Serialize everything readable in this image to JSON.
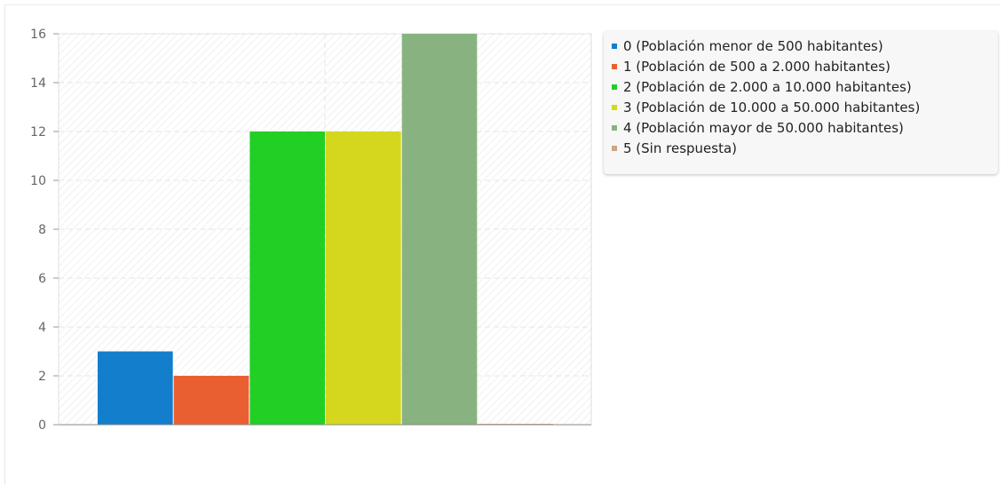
{
  "chart_data": {
    "type": "bar",
    "title": "",
    "xlabel": "",
    "ylabel": "",
    "ylim": [
      0,
      16
    ],
    "yticks": [
      0,
      2,
      4,
      6,
      8,
      10,
      12,
      14,
      16
    ],
    "grid": true,
    "legend_position": "right",
    "series": [
      {
        "name": "0 (Población menor de 500 habitantes)",
        "value": 3,
        "color": "#127ecc"
      },
      {
        "name": "1 (Población de 500 a 2.000 habitantes)",
        "value": 2,
        "color": "#e95f32"
      },
      {
        "name": "2 (Población de 2.000 a 10.000 habitantes)",
        "value": 12,
        "color": "#22cf25"
      },
      {
        "name": "3 (Población de 10.000 a 50.000 habitantes)",
        "value": 12,
        "color": "#d5d71e"
      },
      {
        "name": "4 (Población mayor de 50.000 habitantes)",
        "value": 16,
        "color": "#88b380"
      },
      {
        "name": "5 (Sin respuesta)",
        "value": 0,
        "color": "#cfa582"
      }
    ]
  }
}
